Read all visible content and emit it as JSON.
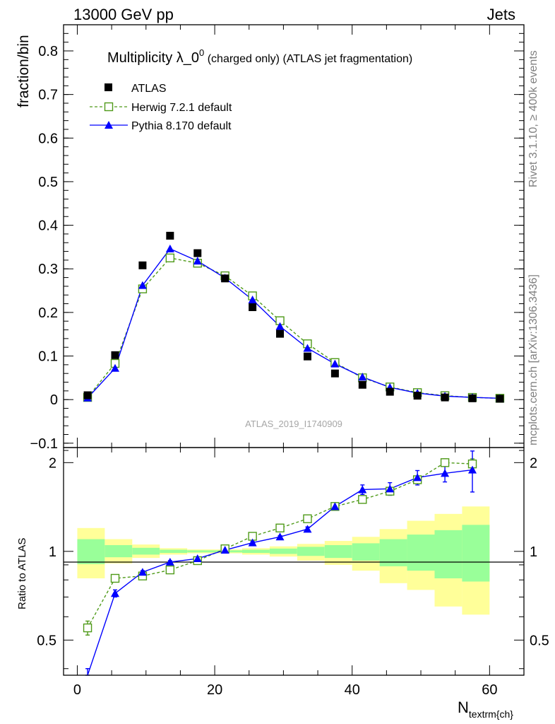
{
  "header": {
    "left": "13000 GeV pp",
    "right": "Jets"
  },
  "side_labels": {
    "top": "Rivet 3.1.10, ≥ 400k events",
    "bottom": "mcplots.cern.ch [arXiv:1306.3436]"
  },
  "chart_data": {
    "type": "line",
    "title_main": "Multiplicity λ_0",
    "title_sup": "0",
    "title_rest": " (charged only) (ATLAS jet fragmentation)",
    "watermark": "ATLAS_2019_I1740909",
    "ylabel": "fraction/bin",
    "ratio_ylabel": "Ratio to ATLAS",
    "xlabel_main": "N",
    "xlabel_sub": "textrm{ch}",
    "xlim": [
      -2,
      65
    ],
    "ylim": [
      -0.11,
      0.86
    ],
    "ratio_ylim": [
      0.38,
      2.25
    ],
    "x_ticks": [
      "0",
      "20",
      "40",
      "60"
    ],
    "y_ticks": [
      "−0.1",
      "0",
      "0.1",
      "0.2",
      "0.3",
      "0.4",
      "0.5",
      "0.6",
      "0.7",
      "0.8"
    ],
    "ratio_ticks": [
      "0.5",
      "1",
      "2"
    ],
    "x": [
      1.5,
      5.5,
      9.5,
      13.5,
      17.5,
      21.5,
      25.5,
      29.5,
      33.5,
      37.5,
      41.5,
      45.5,
      49.5,
      53.5,
      57.5,
      61.5
    ],
    "bin_edges": [
      0,
      4,
      8,
      12,
      16,
      20,
      24,
      28,
      32,
      36,
      40,
      44,
      48,
      52,
      56,
      60
    ],
    "series": [
      {
        "name": "ATLAS",
        "color": "#000000",
        "marker": "square",
        "values": [
          0.01,
          0.102,
          0.308,
          0.376,
          0.336,
          0.278,
          0.212,
          0.151,
          0.099,
          0.06,
          0.034,
          0.018,
          0.009,
          0.005,
          0.003,
          0.002
        ]
      },
      {
        "name": "Herwig 7.2.1 default",
        "color": "#4f9a19",
        "marker": "open-square",
        "dashed": true,
        "values": [
          0.005,
          0.083,
          0.254,
          0.325,
          0.313,
          0.284,
          0.238,
          0.181,
          0.128,
          0.085,
          0.05,
          0.029,
          0.016,
          0.009,
          0.005,
          0.003
        ]
      },
      {
        "name": "Pythia 8.170 default",
        "color": "#0000ff",
        "marker": "triangle",
        "dashed": false,
        "values": [
          0.004,
          0.072,
          0.262,
          0.346,
          0.318,
          0.279,
          0.229,
          0.168,
          0.118,
          0.082,
          0.052,
          0.028,
          0.015,
          0.008,
          0.005,
          0.003
        ]
      }
    ],
    "ratio_series": [
      {
        "name": "Herwig 7.2.1 default",
        "x": [
          1.5,
          5.5,
          9.5,
          13.5,
          17.5,
          21.5,
          25.5,
          29.5,
          33.5,
          37.5,
          41.5,
          45.5,
          49.5,
          53.5,
          57.5
        ],
        "values": [
          0.55,
          0.81,
          0.825,
          0.865,
          0.93,
          1.02,
          1.125,
          1.2,
          1.29,
          1.42,
          1.5,
          1.6,
          1.75,
          2.0,
          1.98
        ],
        "errors": [
          0.03,
          0.01,
          0.01,
          0.01,
          0.01,
          0.01,
          0.01,
          0.01,
          0.01,
          0.02,
          0.03,
          0.04,
          0.05,
          0.06,
          0.08
        ]
      },
      {
        "name": "Pythia 8.170 default",
        "x": [
          1.5,
          5.5,
          9.5,
          13.5,
          17.5,
          21.5,
          25.5,
          29.5,
          33.5,
          37.5,
          41.5,
          45.5,
          49.5,
          53.5,
          57.5
        ],
        "values": [
          0.38,
          0.72,
          0.85,
          0.92,
          0.945,
          1.01,
          1.07,
          1.12,
          1.19,
          1.42,
          1.62,
          1.63,
          1.78,
          1.84,
          1.89
        ],
        "errors": [
          0.02,
          0.02,
          0.01,
          0.01,
          0.01,
          0.01,
          0.01,
          0.01,
          0.02,
          0.03,
          0.06,
          0.08,
          0.1,
          0.12,
          0.3
        ]
      }
    ],
    "ratio_bands": {
      "yellow_lo": [
        0.81,
        0.91,
        0.95,
        0.975,
        0.985,
        0.985,
        0.975,
        0.96,
        0.93,
        0.9,
        0.86,
        0.78,
        0.74,
        0.65,
        0.61
      ],
      "yellow_hi": [
        1.2,
        1.1,
        1.055,
        1.025,
        1.015,
        1.015,
        1.025,
        1.04,
        1.06,
        1.085,
        1.12,
        1.19,
        1.27,
        1.34,
        1.42
      ],
      "green_lo": [
        0.905,
        0.955,
        0.975,
        0.988,
        0.992,
        0.992,
        0.988,
        0.98,
        0.965,
        0.95,
        0.93,
        0.89,
        0.86,
        0.81,
        0.79
      ],
      "green_hi": [
        1.1,
        1.05,
        1.028,
        1.013,
        1.008,
        1.008,
        1.013,
        1.022,
        1.036,
        1.05,
        1.065,
        1.1,
        1.14,
        1.18,
        1.23
      ]
    }
  }
}
